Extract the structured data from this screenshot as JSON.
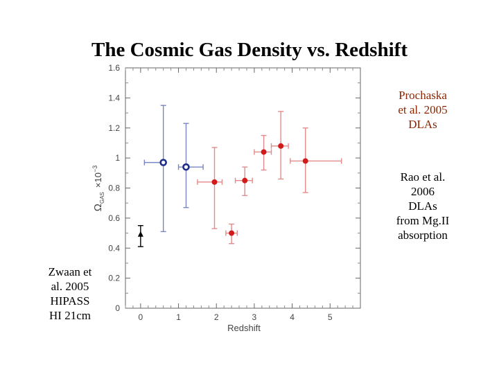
{
  "chart_data": {
    "type": "scatter",
    "title": "The Cosmic Gas Density vs. Redshift",
    "xlabel": "Redshift",
    "ylabel": "Ω_GAS ×10⁻³",
    "ylabel_main": "Ω",
    "ylabel_sub": "GAS",
    "ylabel_factor": "×10",
    "ylabel_exp": "−3",
    "xlim": [
      -0.4,
      5.8
    ],
    "ylim": [
      0,
      1.6
    ],
    "xticks": [
      0,
      1,
      2,
      3,
      4,
      5
    ],
    "yticks": [
      0,
      0.2,
      0.4,
      0.6,
      0.8,
      1,
      1.2,
      1.4,
      1.6
    ],
    "ytick_labels": [
      "0",
      "0.2",
      "0.4",
      "0.6",
      "0.8",
      "1",
      "1.2",
      "1.4",
      "1.6"
    ],
    "series": [
      {
        "name": "Zwaan et al. 2005 HIPASS HI 21cm",
        "marker": "triangle",
        "color": "#000000",
        "points": [
          {
            "x": 0,
            "y": 0.49,
            "xerr_lo": 0,
            "xerr_hi": 0,
            "yerr_lo": 0.08,
            "yerr_hi": 0.06
          }
        ]
      },
      {
        "name": "Rao et al. 2006 DLAs from MgII absorption",
        "marker": "open-circle",
        "color": "#1c2f8c",
        "err_color": "#7a86c4",
        "points": [
          {
            "x": 0.6,
            "y": 0.97,
            "xerr_lo": 0.5,
            "xerr_hi": 0.0,
            "yerr_lo": 0.46,
            "yerr_hi": 0.38
          },
          {
            "x": 1.2,
            "y": 0.94,
            "xerr_lo": 0.2,
            "xerr_hi": 0.45,
            "yerr_lo": 0.27,
            "yerr_hi": 0.29
          }
        ]
      },
      {
        "name": "Prochaska et al. 2005 DLAs",
        "marker": "filled-circle",
        "color": "#d21a1a",
        "err_color": "#e38a8a",
        "points": [
          {
            "x": 1.95,
            "y": 0.84,
            "xerr_lo": 0.45,
            "xerr_hi": 0.2,
            "yerr_lo": 0.31,
            "yerr_hi": 0.23
          },
          {
            "x": 2.4,
            "y": 0.5,
            "xerr_lo": 0.15,
            "xerr_hi": 0.15,
            "yerr_lo": 0.07,
            "yerr_hi": 0.06
          },
          {
            "x": 2.75,
            "y": 0.85,
            "xerr_lo": 0.25,
            "xerr_hi": 0.2,
            "yerr_lo": 0.1,
            "yerr_hi": 0.09
          },
          {
            "x": 3.25,
            "y": 1.04,
            "xerr_lo": 0.25,
            "xerr_hi": 0.2,
            "yerr_lo": 0.12,
            "yerr_hi": 0.11
          },
          {
            "x": 3.7,
            "y": 1.08,
            "xerr_lo": 0.25,
            "xerr_hi": 0.2,
            "yerr_lo": 0.22,
            "yerr_hi": 0.23
          },
          {
            "x": 4.35,
            "y": 0.98,
            "xerr_lo": 0.4,
            "xerr_hi": 0.95,
            "yerr_lo": 0.21,
            "yerr_hi": 0.22
          }
        ]
      }
    ]
  },
  "annotations": {
    "prochaska": [
      "Prochaska",
      "et al. 2005",
      "DLAs"
    ],
    "rao": [
      "Rao et al.",
      "2006",
      "DLAs",
      "from Mg.II",
      "absorption"
    ],
    "zwaan": [
      "Zwaan et",
      "al. 2005",
      "HIPASS",
      "HI 21cm"
    ]
  }
}
